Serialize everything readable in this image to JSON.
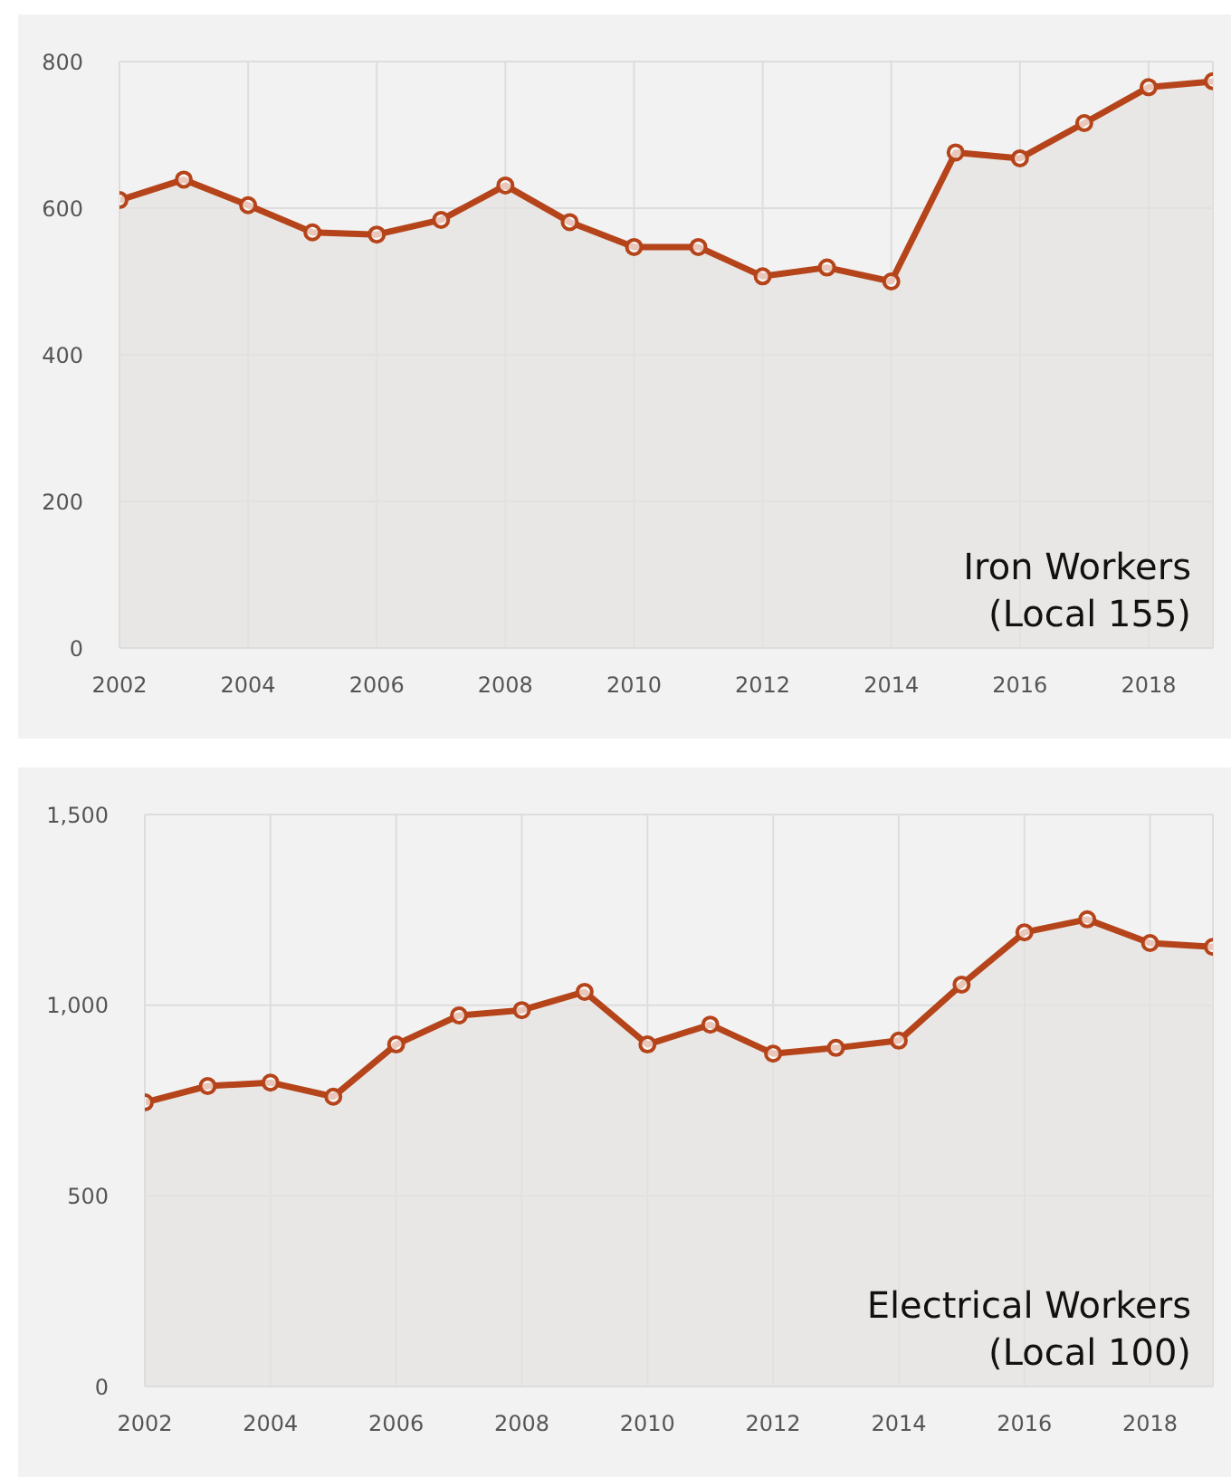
{
  "chart_data": [
    {
      "type": "area",
      "title": "Iron Workers\n(Local 155)",
      "x": [
        2002,
        2003,
        2004,
        2005,
        2006,
        2007,
        2008,
        2009,
        2010,
        2011,
        2012,
        2013,
        2014,
        2015,
        2016,
        2017,
        2018,
        2019
      ],
      "series": [
        {
          "color": "#b5441a",
          "values": [
            611,
            639,
            604,
            567,
            564,
            584,
            631,
            581,
            547,
            547,
            507,
            519,
            500,
            676,
            668,
            716,
            765,
            773
          ]
        }
      ],
      "xlim": [
        2002,
        2019
      ],
      "xticks": [
        2002,
        2004,
        2006,
        2008,
        2010,
        2012,
        2014,
        2016,
        2018
      ],
      "ylim": [
        0,
        800
      ],
      "yticks": [
        0,
        200,
        400,
        600,
        800
      ],
      "grid": true,
      "marker": "circle",
      "line_style": "solid"
    },
    {
      "type": "area",
      "title": "Electrical Workers\n(Local 100)",
      "x": [
        2002,
        2003,
        2004,
        2005,
        2006,
        2007,
        2008,
        2009,
        2010,
        2011,
        2012,
        2013,
        2014,
        2015,
        2016,
        2017,
        2018,
        2019
      ],
      "series": [
        {
          "color": "#b5441a",
          "values": [
            745,
            788,
            797,
            760,
            897,
            973,
            987,
            1035,
            897,
            949,
            873,
            888,
            907,
            1054,
            1191,
            1225,
            1163,
            1153
          ]
        }
      ],
      "xlim": [
        2002,
        2019
      ],
      "xticks": [
        2002,
        2004,
        2006,
        2008,
        2010,
        2012,
        2014,
        2016,
        2018
      ],
      "ylim": [
        0,
        1500
      ],
      "yticks": [
        0,
        {
          "value": 500,
          "label": "500"
        },
        {
          "value": 1000,
          "label": "1,000"
        },
        {
          "value": 1500,
          "label": "1,500"
        }
      ],
      "grid": true,
      "marker": "circle",
      "line_style": "solid"
    }
  ]
}
